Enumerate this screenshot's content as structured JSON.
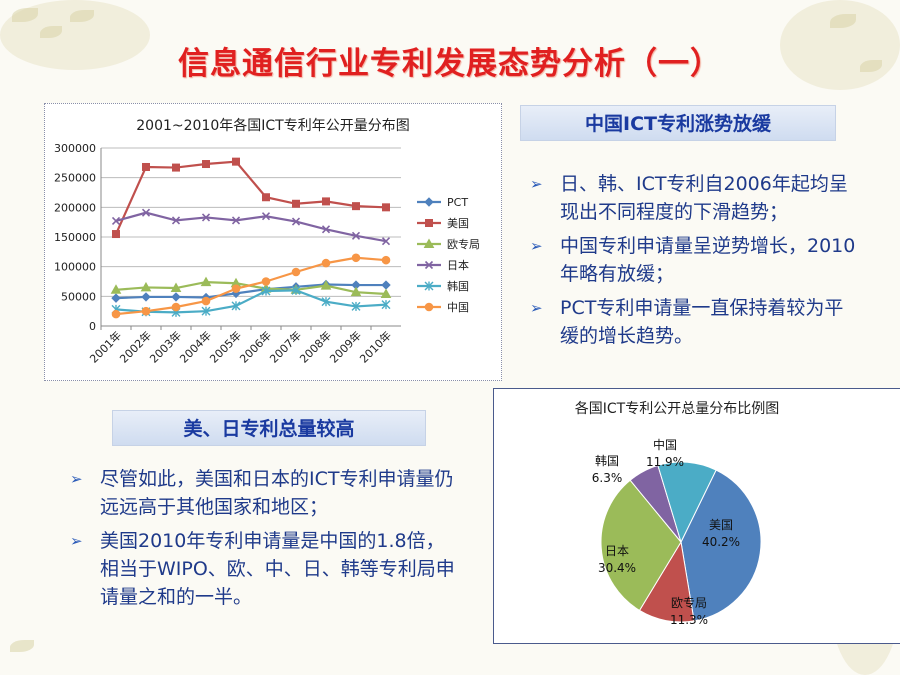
{
  "title": "信息通信行业专利发展态势分析（一）",
  "line_chart": {
    "title": "2001~2010年各国ICT专利年公开量分布图",
    "y_ticks": [
      "0",
      "50000",
      "100000",
      "150000",
      "200000",
      "250000",
      "300000"
    ],
    "x_labels": [
      "2001年",
      "2002年",
      "2003年",
      "2004年",
      "2005年",
      "2006年",
      "2007年",
      "2008年",
      "2009年",
      "2010年"
    ],
    "legend": [
      "PCT",
      "美国",
      "欧专局",
      "日本",
      "韩国",
      "中国"
    ]
  },
  "pie_chart": {
    "title": "各国ICT专利公开总量分布比例图",
    "labels": [
      {
        "name": "美国",
        "pct": "40.2%"
      },
      {
        "name": "欧专局",
        "pct": "11.3%"
      },
      {
        "name": "日本",
        "pct": "30.4%"
      },
      {
        "name": "韩国",
        "pct": "6.3%"
      },
      {
        "name": "中国",
        "pct": "11.9%"
      }
    ]
  },
  "section_cn": {
    "heading": "中国ICT专利涨势放缓",
    "bullets": [
      "日、韩、ICT专利自2006年起均呈现出不同程度的下滑趋势；",
      "中国专利申请量呈逆势增长，2010年略有放缓；",
      "PCT专利申请量一直保持着较为平缓的增长趋势。"
    ]
  },
  "section_us": {
    "heading": "美、日专利总量较高",
    "bullets": [
      "尽管如此，美国和日本的ICT专利申请量仍远远高于其他国家和地区；",
      "美国2010年专利申请量是中国的1.8倍，相当于WIPO、欧、中、日、韩等专利局申请量之和的一半。"
    ]
  },
  "bullet_glyph": "➢",
  "chart_data": [
    {
      "type": "line",
      "title": "2001~2010年各国ICT专利年公开量分布图",
      "categories": [
        "2001年",
        "2002年",
        "2003年",
        "2004年",
        "2005年",
        "2006年",
        "2007年",
        "2008年",
        "2009年",
        "2010年"
      ],
      "ylim": [
        0,
        300000
      ],
      "y_step": 50000,
      "grid": true,
      "legend_position": "right",
      "series": [
        {
          "name": "PCT",
          "color": "#4f81bd",
          "marker": "diamond",
          "values": [
            47000,
            49000,
            49000,
            48000,
            55000,
            62000,
            66000,
            70000,
            69000,
            69000
          ]
        },
        {
          "name": "美国",
          "color": "#c0504d",
          "marker": "square",
          "values": [
            155000,
            268000,
            267000,
            273000,
            277000,
            217000,
            206000,
            210000,
            202000,
            200000
          ]
        },
        {
          "name": "欧专局",
          "color": "#9bbb59",
          "marker": "triangle",
          "values": [
            61000,
            65000,
            64000,
            74000,
            72000,
            63000,
            61000,
            68000,
            57000,
            54000
          ]
        },
        {
          "name": "日本",
          "color": "#8064a2",
          "marker": "x",
          "values": [
            177000,
            191000,
            178000,
            183000,
            178000,
            185000,
            176000,
            163000,
            152000,
            143000
          ]
        },
        {
          "name": "韩国",
          "color": "#4bacc6",
          "marker": "star",
          "values": [
            28000,
            24000,
            23000,
            25000,
            34000,
            59000,
            60000,
            41000,
            33000,
            36000
          ]
        },
        {
          "name": "中国",
          "color": "#f79646",
          "marker": "circle",
          "values": [
            20000,
            25000,
            32000,
            42000,
            63000,
            75000,
            91000,
            106000,
            115000,
            111000
          ]
        }
      ]
    },
    {
      "type": "pie",
      "title": "各国ICT专利公开总量分布比例图",
      "slices": [
        {
          "name": "美国",
          "value": 40.2,
          "color": "#4f81bd"
        },
        {
          "name": "欧专局",
          "value": 11.3,
          "color": "#c0504d"
        },
        {
          "name": "日本",
          "value": 30.4,
          "color": "#9bbb59"
        },
        {
          "name": "韩国",
          "value": 6.3,
          "color": "#8064a2"
        },
        {
          "name": "中国",
          "value": 11.9,
          "color": "#4bacc6"
        }
      ]
    }
  ]
}
